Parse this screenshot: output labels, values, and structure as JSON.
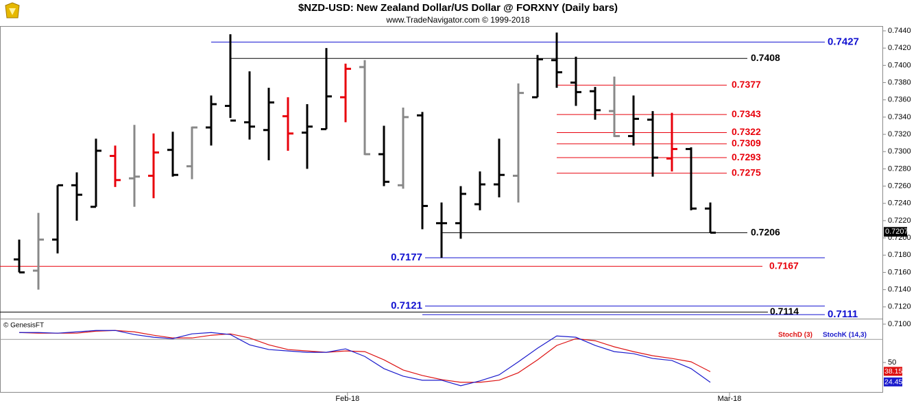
{
  "chart_data": [
    {
      "type": "ohlc",
      "title": "$NZD-USD:  New Zealand Dollar/US Dollar @ FORXNY  (Daily bars)",
      "subtitle": "www.TradeNavigator.com © 1999-2018",
      "categories": [
        null,
        null,
        null,
        null,
        null,
        null,
        null,
        null,
        null,
        null,
        null,
        null,
        null,
        null,
        null,
        null,
        null,
        null,
        null,
        null,
        null,
        null,
        null,
        null,
        null,
        null,
        null,
        null,
        null,
        null,
        null,
        null,
        null,
        null,
        null,
        null,
        null
      ],
      "open": [
        0.7175,
        0.7162,
        0.7198,
        0.7261,
        0.7236,
        0.7295,
        0.7269,
        0.7272,
        0.7302,
        0.7283,
        0.7328,
        0.7353,
        0.7334,
        0.7325,
        0.7341,
        0.7322,
        0.7326,
        0.7363,
        0.7398,
        0.7297,
        0.7261,
        0.7342,
        0.7217,
        0.7217,
        0.7239,
        0.7262,
        0.7272,
        0.7363,
        0.7406,
        0.738,
        0.737,
        0.7347,
        0.7318,
        0.7337,
        0.7292,
        0.7303,
        0.7234
      ],
      "high": [
        0.7198,
        0.7229,
        0.7261,
        0.7276,
        0.7315,
        0.7307,
        0.7331,
        0.7321,
        0.7323,
        0.7329,
        0.7365,
        0.7436,
        0.7393,
        0.7374,
        0.7363,
        0.7355,
        0.742,
        0.7402,
        0.7406,
        0.733,
        0.7351,
        0.7346,
        0.7241,
        0.726,
        0.7277,
        0.7315,
        0.7379,
        0.7412,
        0.7438,
        0.741,
        0.7375,
        0.7387,
        0.7365,
        0.7347,
        0.7345,
        0.7305,
        0.7241
      ],
      "low": [
        0.716,
        0.714,
        0.7182,
        0.722,
        0.7236,
        0.7259,
        0.7236,
        0.7246,
        0.7271,
        0.7268,
        0.7307,
        0.7339,
        0.7314,
        0.729,
        0.7301,
        0.728,
        0.7326,
        0.7334,
        0.7296,
        0.726,
        0.7257,
        0.721,
        0.7177,
        0.7199,
        0.7232,
        0.7247,
        0.7241,
        0.7363,
        0.7374,
        0.7353,
        0.7337,
        0.7317,
        0.7307,
        0.7271,
        0.7277,
        0.7232,
        0.7206
      ],
      "close": [
        0.716,
        0.7198,
        0.7261,
        0.725,
        0.7301,
        0.7267,
        0.7271,
        0.7299,
        0.7273,
        0.7328,
        0.7355,
        0.7336,
        0.7329,
        0.7357,
        0.7321,
        0.7329,
        0.7364,
        0.7396,
        0.7297,
        0.7265,
        0.734,
        0.7237,
        0.7217,
        0.7251,
        0.7262,
        0.7273,
        0.7368,
        0.7407,
        0.7392,
        0.7369,
        0.7348,
        0.7318,
        0.7338,
        0.7293,
        0.7303,
        0.7234,
        0.7206
      ],
      "bar_colors": [
        "#000000",
        "#888888",
        "#000000",
        "#000000",
        "#000000",
        "#e8000b",
        "#888888",
        "#e8000b",
        "#000000",
        "#888888",
        "#000000",
        "#000000",
        "#000000",
        "#000000",
        "#e8000b",
        "#000000",
        "#000000",
        "#e8000b",
        "#888888",
        "#000000",
        "#888888",
        "#000000",
        "#000000",
        "#000000",
        "#000000",
        "#000000",
        "#888888",
        "#000000",
        "#000000",
        "#000000",
        "#000000",
        "#888888",
        "#000000",
        "#000000",
        "#e8000b",
        "#000000",
        "#000000"
      ],
      "levels": [
        {
          "value": 0.7427,
          "color": "#1010d0"
        },
        {
          "value": 0.7408,
          "color": "#000000"
        },
        {
          "value": 0.7377,
          "color": "#e8000b"
        },
        {
          "value": 0.7343,
          "color": "#e8000b"
        },
        {
          "value": 0.7322,
          "color": "#e8000b"
        },
        {
          "value": 0.7309,
          "color": "#e8000b"
        },
        {
          "value": 0.7293,
          "color": "#e8000b"
        },
        {
          "value": 0.7275,
          "color": "#e8000b"
        },
        {
          "value": 0.7206,
          "color": "#000000"
        },
        {
          "value": 0.7177,
          "color": "#1010d0"
        },
        {
          "value": 0.7167,
          "color": "#e8000b"
        },
        {
          "value": 0.7121,
          "color": "#1010d0"
        },
        {
          "value": 0.7114,
          "color": "#000000"
        },
        {
          "value": 0.7111,
          "color": "#1010d0"
        }
      ],
      "last_price": 0.7207,
      "ylim": [
        0.71,
        0.7446
      ],
      "yticks": [
        {
          "value": 0.71,
          "label": "0.7100"
        },
        {
          "value": 0.712,
          "label": "0.7120"
        },
        {
          "value": 0.714,
          "label": "0.7140"
        },
        {
          "value": 0.716,
          "label": "0.7160"
        },
        {
          "value": 0.718,
          "label": "0.7180"
        },
        {
          "value": 0.72,
          "label": "0.7200"
        },
        {
          "value": 0.722,
          "label": "0.7220"
        },
        {
          "value": 0.724,
          "label": "0.7240"
        },
        {
          "value": 0.726,
          "label": "0.7260"
        },
        {
          "value": 0.728,
          "label": "0.7280"
        },
        {
          "value": 0.73,
          "label": "0.7300"
        },
        {
          "value": 0.732,
          "label": "0.7320"
        },
        {
          "value": 0.734,
          "label": "0.7340"
        },
        {
          "value": 0.736,
          "label": "0.7360"
        },
        {
          "value": 0.738,
          "label": "0.7380"
        },
        {
          "value": 0.74,
          "label": "0.7400"
        },
        {
          "value": 0.742,
          "label": "0.7420"
        },
        {
          "value": 0.744,
          "label": "0.7440"
        }
      ],
      "xticks": [
        {
          "value": 17.1,
          "label": "Feb-18"
        },
        {
          "value": 37,
          "label": "Mar-18"
        }
      ]
    },
    {
      "type": "line",
      "source": "© GenesisFT",
      "series": [
        {
          "name": "StochD (3)",
          "color": "#dd1111",
          "values": [
            88.8,
            88.0,
            88.0,
            88.0,
            90.6,
            91.5,
            89.7,
            85.3,
            81.8,
            81.8,
            85.3,
            87.1,
            81.8,
            72.9,
            66.8,
            65.0,
            63.2,
            65.0,
            64.1,
            53.5,
            40.3,
            33.2,
            27.9,
            24.4,
            24.4,
            27.1,
            36.8,
            53.5,
            72.1,
            80.9,
            78.2,
            70.3,
            64.1,
            58.8,
            55.3,
            50.9,
            38.15
          ]
        },
        {
          "name": "StochK (14,3)",
          "color": "#1a1acc",
          "values": [
            88.8,
            88.8,
            88.0,
            89.7,
            91.5,
            91.5,
            86.2,
            82.7,
            80.9,
            87.1,
            88.8,
            86.2,
            72.9,
            66.8,
            65.0,
            63.2,
            63.2,
            67.7,
            57.9,
            42.1,
            32.3,
            27.1,
            27.1,
            20.0,
            26.2,
            34.1,
            50.9,
            68.5,
            84.4,
            82.7,
            72.1,
            64.1,
            61.5,
            55.3,
            52.6,
            42.1,
            24.45
          ]
        }
      ],
      "reference_line": 80,
      "ylim": [
        11,
        105
      ],
      "yticks": [
        50
      ]
    }
  ]
}
